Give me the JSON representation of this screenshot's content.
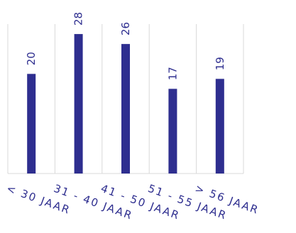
{
  "chart_data": {
    "type": "bar",
    "title": "",
    "xlabel": "",
    "ylabel": "",
    "categories": [
      "< 30 JAAR",
      "31 - 40 JAAR",
      "41 - 50 JAAR",
      "51 - 55 JAAR",
      "> 56 JAAR"
    ],
    "values": [
      20,
      28,
      26,
      17,
      19
    ],
    "ylim": [
      0,
      30
    ],
    "grid": "vertical",
    "legend": "none",
    "bar_color": "#2e2e8f",
    "label_color": "#2e2e8f",
    "grid_color": "#d9d9d9"
  }
}
